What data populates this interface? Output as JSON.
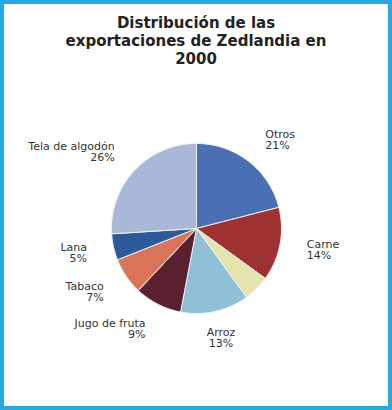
{
  "chart_data": {
    "type": "pie",
    "title": "Distribución de las exportaciones de Zedlandia en 2000",
    "categories": [
      "Otros",
      "Carne",
      null,
      "Arroz",
      "Jugo de fruta",
      "Tabaco",
      "Lana",
      "Tela de algodón"
    ],
    "values": [
      21,
      14,
      5,
      13,
      9,
      7,
      5,
      26
    ],
    "value_labels": [
      "21%",
      "14%",
      null,
      "13%",
      "9%",
      "7%",
      "5%",
      "26%"
    ],
    "colors": [
      "#4a6fb3",
      "#9e3232",
      "#e6e4ae",
      "#8fc0d8",
      "#5a2030",
      "#d9735a",
      "#2f5a9a",
      "#a9b8d8"
    ],
    "data_labels": true
  }
}
